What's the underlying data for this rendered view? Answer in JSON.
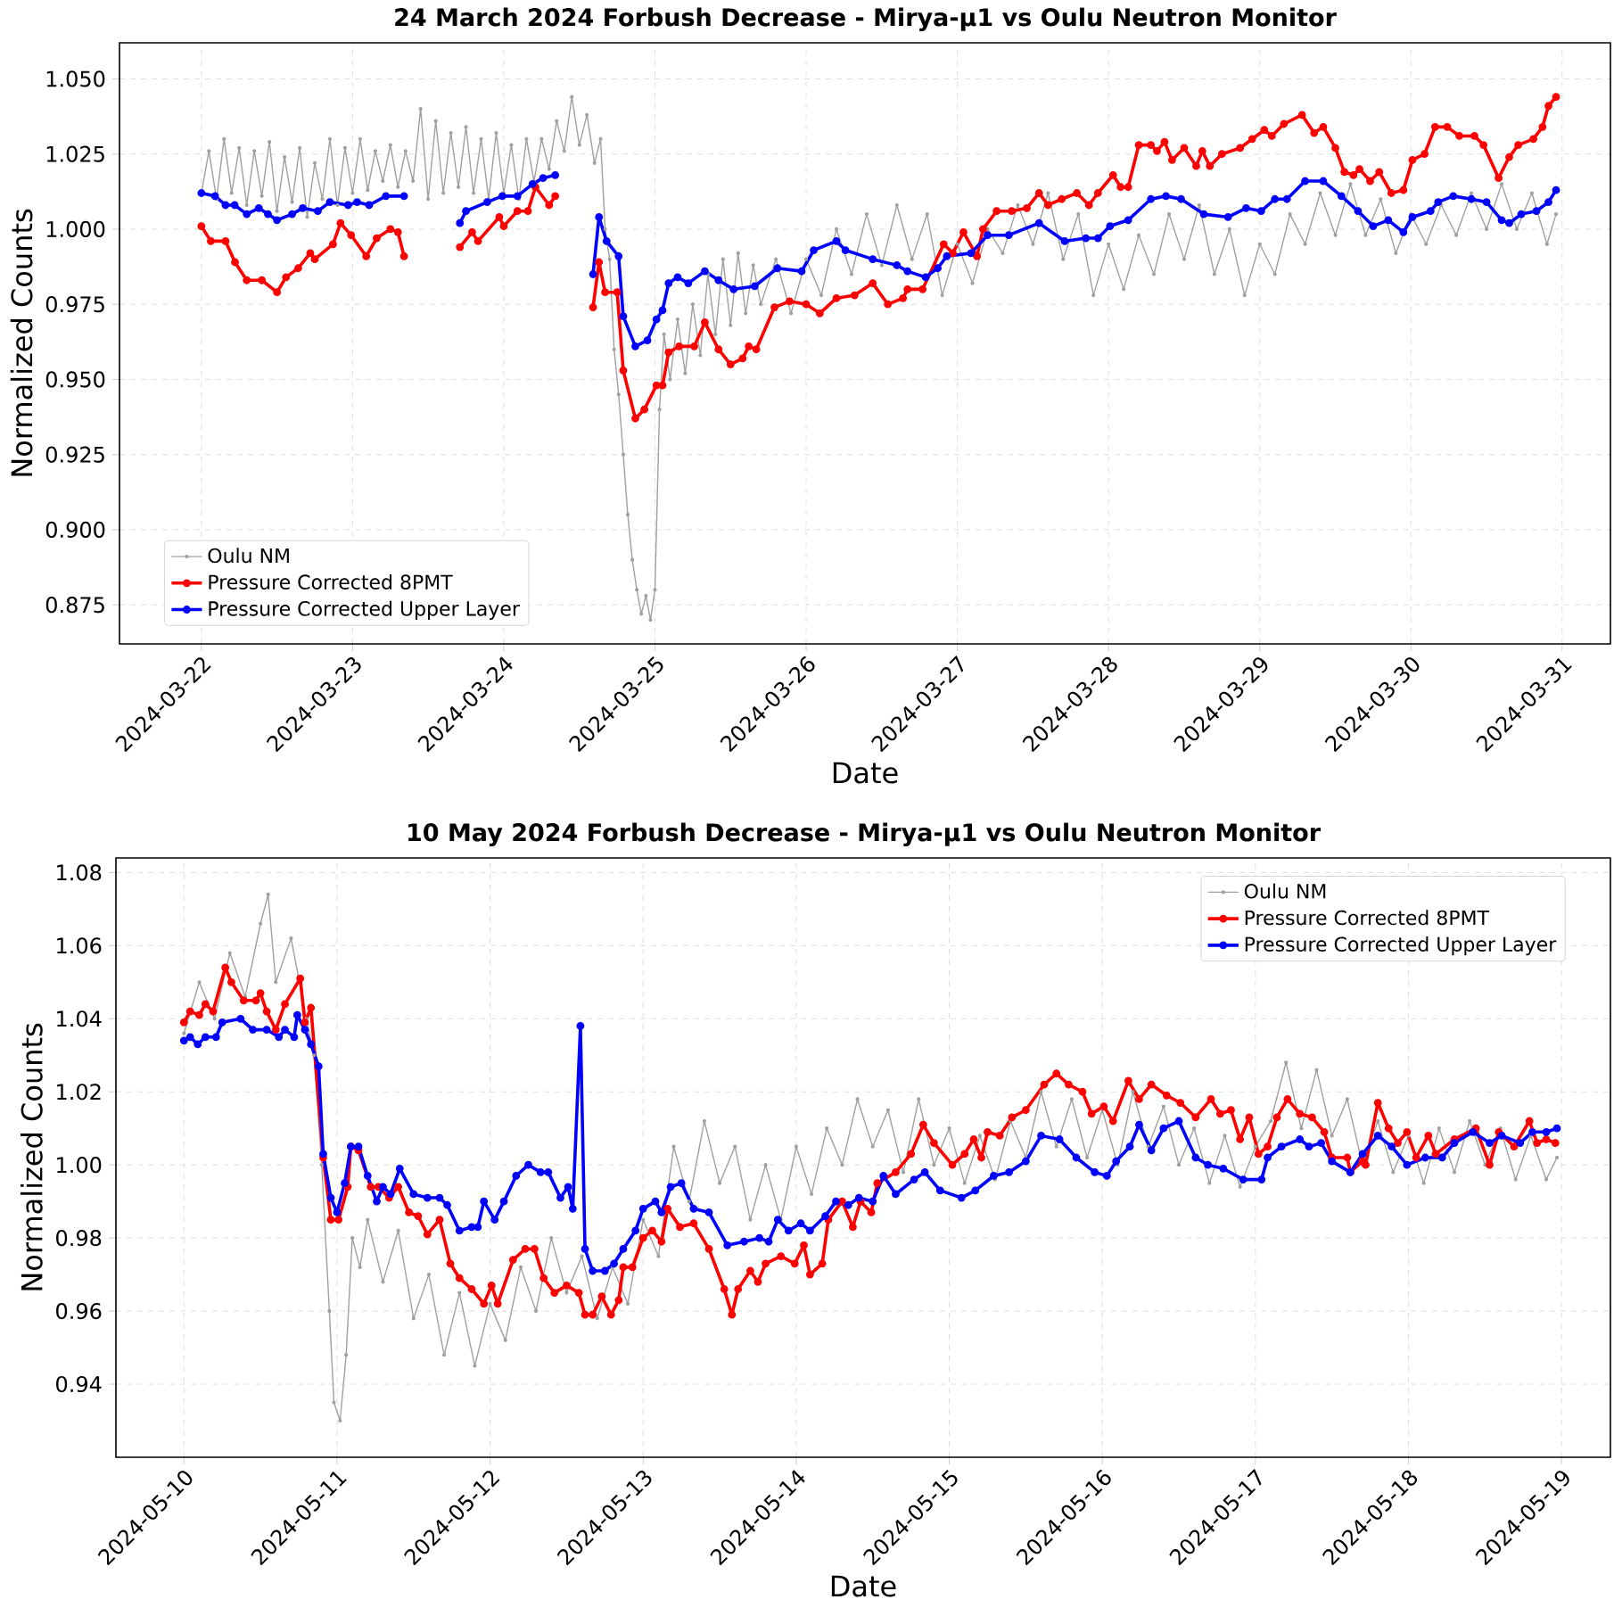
{
  "chart_data": [
    {
      "type": "line",
      "title": "24 March 2024 Forbush Decrease - Mirya-µ1 vs Oulu Neutron Monitor",
      "xlabel": "Date",
      "ylabel": "Normalized Counts",
      "xlim": [
        "2024-03-21T11:00",
        "2024-03-31T07:40"
      ],
      "ylim": [
        0.862,
        1.062
      ],
      "xticks": [
        "2024-03-22",
        "2024-03-23",
        "2024-03-24",
        "2024-03-25",
        "2024-03-26",
        "2024-03-27",
        "2024-03-28",
        "2024-03-29",
        "2024-03-30",
        "2024-03-31"
      ],
      "yticks": [
        {
          "value": 0.875,
          "label": "0.875"
        },
        {
          "value": 0.9,
          "label": "0.900"
        },
        {
          "value": 0.925,
          "label": "0.925"
        },
        {
          "value": 0.95,
          "label": "0.950"
        },
        {
          "value": 0.975,
          "label": "0.975"
        },
        {
          "value": 1.0,
          "label": "1.000"
        },
        {
          "value": 1.025,
          "label": "1.025"
        },
        {
          "value": 1.05,
          "label": "1.050"
        }
      ],
      "grid": true,
      "legend": "bottom left",
      "marker": "circle",
      "line_style": "solid",
      "series": [
        {
          "name": "Oulu NM",
          "color": "#a0a0a0",
          "x": [
            "2024-03-22T00:00",
            "2024-03-22T01:12",
            "2024-03-22T02:24",
            "2024-03-22T03:36",
            "2024-03-22T04:48",
            "2024-03-22T06:00",
            "2024-03-22T07:12",
            "2024-03-22T08:24",
            "2024-03-22T09:36",
            "2024-03-22T10:48",
            "2024-03-22T12:00",
            "2024-03-22T13:12",
            "2024-03-22T14:24",
            "2024-03-22T15:36",
            "2024-03-22T16:48",
            "2024-03-22T18:00",
            "2024-03-22T19:12",
            "2024-03-22T20:24",
            "2024-03-22T21:36",
            "2024-03-22T22:48",
            "2024-03-23T00:00",
            "2024-03-23T01:12",
            "2024-03-23T02:24",
            "2024-03-23T03:36",
            "2024-03-23T04:48",
            "2024-03-23T06:00",
            "2024-03-23T07:12",
            "2024-03-23T08:24",
            "2024-03-23T09:36",
            "2024-03-23T10:48",
            "2024-03-23T12:00",
            "2024-03-23T13:12",
            "2024-03-23T14:24",
            "2024-03-23T15:36",
            "2024-03-23T16:48",
            "2024-03-23T18:00",
            "2024-03-23T19:12",
            "2024-03-23T20:24",
            "2024-03-23T21:36",
            "2024-03-23T22:48",
            "2024-03-24T00:00",
            "2024-03-24T01:12",
            "2024-03-24T02:24",
            "2024-03-24T03:36",
            "2024-03-24T04:48",
            "2024-03-24T06:00",
            "2024-03-24T07:12",
            "2024-03-24T08:24",
            "2024-03-24T09:36",
            "2024-03-24T10:48",
            "2024-03-24T12:00",
            "2024-03-24T13:12",
            "2024-03-24T14:24",
            "2024-03-24T15:22",
            "2024-03-24T16:05",
            "2024-03-24T16:48",
            "2024-03-24T17:31",
            "2024-03-24T18:14",
            "2024-03-24T18:58",
            "2024-03-24T19:41",
            "2024-03-24T20:24",
            "2024-03-24T21:07",
            "2024-03-24T21:50",
            "2024-03-24T22:34",
            "2024-03-24T23:17",
            "2024-03-25T00:00",
            "2024-03-25T00:43",
            "2024-03-25T01:26",
            "2024-03-25T02:24",
            "2024-03-25T03:36",
            "2024-03-25T04:48",
            "2024-03-25T06:00",
            "2024-03-25T07:12",
            "2024-03-25T08:24",
            "2024-03-25T09:36",
            "2024-03-25T10:48",
            "2024-03-25T12:00",
            "2024-03-25T13:12",
            "2024-03-25T14:24",
            "2024-03-25T15:36",
            "2024-03-25T16:48",
            "2024-03-25T19:12",
            "2024-03-25T21:36",
            "2024-03-26T00:00",
            "2024-03-26T02:24",
            "2024-03-26T04:48",
            "2024-03-26T07:12",
            "2024-03-26T09:36",
            "2024-03-26T12:00",
            "2024-03-26T14:24",
            "2024-03-26T16:48",
            "2024-03-26T19:12",
            "2024-03-26T21:36",
            "2024-03-27T00:00",
            "2024-03-27T02:24",
            "2024-03-27T04:48",
            "2024-03-27T07:12",
            "2024-03-27T09:36",
            "2024-03-27T12:00",
            "2024-03-27T14:24",
            "2024-03-27T16:48",
            "2024-03-27T19:12",
            "2024-03-27T21:36",
            "2024-03-28T00:00",
            "2024-03-28T02:24",
            "2024-03-28T04:48",
            "2024-03-28T07:12",
            "2024-03-28T09:36",
            "2024-03-28T12:00",
            "2024-03-28T14:24",
            "2024-03-28T16:48",
            "2024-03-28T19:12",
            "2024-03-28T21:36",
            "2024-03-29T00:00",
            "2024-03-29T02:24",
            "2024-03-29T04:48",
            "2024-03-29T07:12",
            "2024-03-29T09:36",
            "2024-03-29T12:00",
            "2024-03-29T14:24",
            "2024-03-29T16:48",
            "2024-03-29T19:12",
            "2024-03-29T21:36",
            "2024-03-30T00:00",
            "2024-03-30T02:24",
            "2024-03-30T04:48",
            "2024-03-30T07:12",
            "2024-03-30T09:36",
            "2024-03-30T12:00",
            "2024-03-30T14:24",
            "2024-03-30T16:48",
            "2024-03-30T19:12",
            "2024-03-30T21:36",
            "2024-03-30T23:02"
          ],
          "values": [
            1.012,
            1.026,
            1.01,
            1.03,
            1.012,
            1.027,
            1.008,
            1.026,
            1.011,
            1.029,
            1.006,
            1.024,
            1.009,
            1.027,
            1.004,
            1.022,
            1.01,
            1.03,
            1.008,
            1.027,
            1.012,
            1.03,
            1.013,
            1.026,
            1.016,
            1.028,
            1.014,
            1.026,
            1.016,
            1.04,
            1.01,
            1.036,
            1.012,
            1.032,
            1.014,
            1.034,
            1.012,
            1.03,
            1.01,
            1.032,
            1.012,
            1.028,
            1.01,
            1.03,
            1.016,
            1.03,
            1.02,
            1.036,
            1.026,
            1.044,
            1.028,
            1.038,
            1.022,
            1.03,
            1.0,
            0.99,
            0.96,
            0.945,
            0.925,
            0.905,
            0.89,
            0.88,
            0.872,
            0.878,
            0.87,
            0.88,
            0.94,
            0.965,
            0.95,
            0.97,
            0.952,
            0.975,
            0.958,
            0.985,
            0.965,
            0.99,
            0.968,
            0.992,
            0.972,
            0.988,
            0.975,
            0.99,
            0.972,
            0.99,
            0.978,
            1.0,
            0.985,
            1.005,
            0.988,
            1.008,
            0.99,
            1.005,
            0.978,
            0.995,
            0.982,
            1.0,
            0.992,
            1.008,
            0.995,
            1.012,
            0.99,
            1.005,
            0.978,
            0.995,
            0.98,
            0.998,
            0.985,
            1.005,
            0.99,
            1.008,
            0.985,
            1.0,
            0.978,
            0.995,
            0.985,
            1.005,
            0.995,
            1.012,
            0.998,
            1.015,
            0.998,
            1.01,
            0.992,
            1.005,
            0.995,
            1.008,
            0.998,
            1.012,
            1.0,
            1.015,
            1.0,
            1.012,
            0.995,
            1.005
          ]
        },
        {
          "name": "Pressure Corrected 8PMT",
          "color": "#ff0000",
          "x": [
            "2024-03-22T00:00",
            "2024-03-22T01:30",
            "2024-03-22T03:50",
            "2024-03-22T05:20",
            "2024-03-22T07:12",
            "2024-03-22T09:36",
            "2024-03-22T12:00",
            "2024-03-22T13:26",
            "2024-03-22T15:22",
            "2024-03-22T17:17",
            "2024-03-22T18:00",
            "2024-03-22T20:53",
            "2024-03-22T22:05",
            "2024-03-22T23:46",
            "2024-03-23T02:10",
            "2024-03-23T03:50",
            "2024-03-23T06:00",
            "2024-03-23T07:12",
            "2024-03-23T08:10",
            "2024-03-23T14:00",
            "2024-03-23T17:02",
            "2024-03-23T18:58",
            "2024-03-23T19:55",
            "2024-03-23T23:17",
            "2024-03-24T00:00",
            "2024-03-24T02:10",
            "2024-03-24T03:50",
            "2024-03-24T05:02",
            "2024-03-24T07:12",
            "2024-03-24T08:10",
            "2024-03-24T11:00",
            "2024-03-24T14:10",
            "2024-03-24T15:07",
            "2024-03-24T16:05",
            "2024-03-24T18:00",
            "2024-03-24T18:58",
            "2024-03-24T20:53",
            "2024-03-24T22:19",
            "2024-03-25T00:14",
            "2024-03-25T01:12",
            "2024-03-25T02:10",
            "2024-03-25T03:50",
            "2024-03-25T06:14",
            "2024-03-25T07:55",
            "2024-03-25T10:05",
            "2024-03-25T12:00",
            "2024-03-25T13:55",
            "2024-03-25T14:53",
            "2024-03-25T16:05",
            "2024-03-25T18:58",
            "2024-03-25T21:22",
            "2024-03-26T00:00",
            "2024-03-26T02:10",
            "2024-03-26T04:48",
            "2024-03-26T07:41",
            "2024-03-26T10:34",
            "2024-03-26T12:58",
            "2024-03-26T15:22",
            "2024-03-26T16:05",
            "2024-03-26T18:29",
            "2024-03-26T21:50",
            "2024-03-26T23:17",
            "2024-03-27T00:58",
            "2024-03-27T03:07",
            "2024-03-27T04:05",
            "2024-03-27T06:14",
            "2024-03-27T08:38",
            "2024-03-27T11:02",
            "2024-03-27T12:58",
            "2024-03-27T14:24",
            "2024-03-27T16:34",
            "2024-03-27T18:58",
            "2024-03-27T20:53",
            "2024-03-27T22:19",
            "2024-03-28T00:43",
            "2024-03-28T01:55",
            "2024-03-28T03:07",
            "2024-03-28T04:48",
            "2024-03-28T06:43",
            "2024-03-28T07:41",
            "2024-03-28T08:53",
            "2024-03-28T10:05",
            "2024-03-28T12:00",
            "2024-03-28T13:55",
            "2024-03-28T14:53",
            "2024-03-28T16:05",
            "2024-03-28T18:00",
            "2024-03-28T20:53",
            "2024-03-28T22:48",
            "2024-03-29T00:43",
            "2024-03-29T01:55",
            "2024-03-29T03:50",
            "2024-03-29T06:43",
            "2024-03-29T08:38",
            "2024-03-29T10:05",
            "2024-03-29T12:00",
            "2024-03-29T13:26",
            "2024-03-29T14:53",
            "2024-03-29T15:50",
            "2024-03-29T17:31",
            "2024-03-29T18:58",
            "2024-03-29T20:53",
            "2024-03-29T22:48",
            "2024-03-30T00:14",
            "2024-03-30T02:10",
            "2024-03-30T03:50",
            "2024-03-30T05:46",
            "2024-03-30T07:41",
            "2024-03-30T10:05",
            "2024-03-30T11:31",
            "2024-03-30T13:55",
            "2024-03-30T15:36",
            "2024-03-30T17:02",
            "2024-03-30T19:26",
            "2024-03-30T20:53",
            "2024-03-30T21:50",
            "2024-03-30T23:02"
          ],
          "values": [
            1.001,
            0.996,
            0.996,
            0.989,
            0.983,
            0.983,
            0.979,
            0.984,
            0.987,
            0.992,
            0.99,
            0.995,
            1.002,
            0.998,
            0.991,
            0.997,
            1.0,
            0.999,
            0.991,
            null,
            0.994,
            0.999,
            0.996,
            1.004,
            1.001,
            1.006,
            1.006,
            1.014,
            1.008,
            1.011,
            null,
            0.974,
            0.989,
            0.979,
            0.979,
            0.953,
            0.937,
            0.94,
            0.948,
            0.948,
            0.959,
            0.961,
            0.961,
            0.969,
            0.96,
            0.955,
            0.957,
            0.961,
            0.96,
            0.974,
            0.976,
            0.975,
            0.972,
            0.977,
            0.978,
            0.982,
            0.975,
            0.977,
            0.98,
            0.98,
            0.995,
            0.992,
            0.999,
            0.991,
            1.0,
            1.006,
            1.006,
            1.007,
            1.012,
            1.008,
            1.01,
            1.012,
            1.008,
            1.012,
            1.018,
            1.014,
            1.014,
            1.028,
            1.028,
            1.026,
            1.029,
            1.023,
            1.027,
            1.021,
            1.026,
            1.021,
            1.025,
            1.027,
            1.03,
            1.033,
            1.031,
            1.035,
            1.038,
            1.032,
            1.034,
            1.027,
            1.019,
            1.018,
            1.02,
            1.016,
            1.019,
            1.012,
            1.013,
            1.023,
            1.025,
            1.034,
            1.034,
            1.031,
            1.031,
            1.028,
            1.017,
            1.024,
            1.028,
            1.03,
            1.034,
            1.041,
            1.044
          ]
        },
        {
          "name": "Pressure Corrected Upper Layer",
          "color": "#0000ff",
          "x": [
            "2024-03-22T00:00",
            "2024-03-22T02:10",
            "2024-03-22T03:50",
            "2024-03-22T05:17",
            "2024-03-22T07:12",
            "2024-03-22T09:07",
            "2024-03-22T10:34",
            "2024-03-22T12:00",
            "2024-03-22T14:24",
            "2024-03-22T16:05",
            "2024-03-22T18:29",
            "2024-03-22T20:24",
            "2024-03-22T23:17",
            "2024-03-23T00:43",
            "2024-03-23T02:38",
            "2024-03-23T05:17",
            "2024-03-23T08:10",
            "2024-03-23T14:00",
            "2024-03-23T17:02",
            "2024-03-23T18:00",
            "2024-03-23T21:22",
            "2024-03-23T23:46",
            "2024-03-24T02:10",
            "2024-03-24T04:34",
            "2024-03-24T06:14",
            "2024-03-24T08:10",
            "2024-03-24T11:00",
            "2024-03-24T14:10",
            "2024-03-24T15:07",
            "2024-03-24T16:19",
            "2024-03-24T18:14",
            "2024-03-24T18:58",
            "2024-03-24T20:53",
            "2024-03-24T22:48",
            "2024-03-25T00:14",
            "2024-03-25T01:12",
            "2024-03-25T02:10",
            "2024-03-25T03:36",
            "2024-03-25T05:17",
            "2024-03-25T07:55",
            "2024-03-25T10:05",
            "2024-03-25T12:29",
            "2024-03-25T15:50",
            "2024-03-25T19:26",
            "2024-03-25T23:17",
            "2024-03-26T01:12",
            "2024-03-26T04:48",
            "2024-03-26T06:14",
            "2024-03-26T10:34",
            "2024-03-26T14:24",
            "2024-03-26T16:05",
            "2024-03-26T18:58",
            "2024-03-26T20:53",
            "2024-03-26T22:19",
            "2024-03-27T02:10",
            "2024-03-27T04:48",
            "2024-03-27T08:10",
            "2024-03-27T12:58",
            "2024-03-27T17:02",
            "2024-03-27T20:24",
            "2024-03-27T22:19",
            "2024-03-28T00:14",
            "2024-03-28T03:07",
            "2024-03-28T06:43",
            "2024-03-28T09:07",
            "2024-03-28T11:31",
            "2024-03-28T15:07",
            "2024-03-28T18:58",
            "2024-03-28T21:50",
            "2024-03-29T00:14",
            "2024-03-29T02:24",
            "2024-03-29T04:19",
            "2024-03-29T07:12",
            "2024-03-29T10:05",
            "2024-03-29T12:58",
            "2024-03-29T15:36",
            "2024-03-29T18:00",
            "2024-03-29T20:24",
            "2024-03-29T22:48",
            "2024-03-30T00:14",
            "2024-03-30T03:07",
            "2024-03-30T04:19",
            "2024-03-30T06:43",
            "2024-03-30T09:36",
            "2024-03-30T12:00",
            "2024-03-30T14:24",
            "2024-03-30T15:36",
            "2024-03-30T17:31",
            "2024-03-30T19:55",
            "2024-03-30T21:50",
            "2024-03-30T23:02"
          ],
          "values": [
            1.012,
            1.011,
            1.008,
            1.008,
            1.005,
            1.007,
            1.005,
            1.003,
            1.005,
            1.007,
            1.006,
            1.009,
            1.008,
            1.009,
            1.008,
            1.011,
            1.011,
            null,
            1.002,
            1.006,
            1.009,
            1.011,
            1.011,
            1.015,
            1.017,
            1.018,
            null,
            0.985,
            1.004,
            0.996,
            0.991,
            0.971,
            0.961,
            0.963,
            0.97,
            0.973,
            0.982,
            0.984,
            0.982,
            0.986,
            0.983,
            0.98,
            0.981,
            0.987,
            0.986,
            0.993,
            0.996,
            0.993,
            0.99,
            0.988,
            0.986,
            0.984,
            0.987,
            0.991,
            0.992,
            0.998,
            0.998,
            1.002,
            0.996,
            0.997,
            0.997,
            1.001,
            1.003,
            1.01,
            1.011,
            1.01,
            1.005,
            1.004,
            1.007,
            1.006,
            1.01,
            1.01,
            1.016,
            1.016,
            1.011,
            1.006,
            1.001,
            1.003,
            0.999,
            1.004,
            1.006,
            1.009,
            1.011,
            1.01,
            1.009,
            1.003,
            1.002,
            1.005,
            1.006,
            1.009,
            1.013
          ]
        }
      ]
    },
    {
      "type": "line",
      "title": "10 May 2024 Forbush Decrease - Mirya-µ1 vs Oulu Neutron Monitor",
      "xlabel": "Date",
      "ylabel": "Normalized Counts",
      "xlim": [
        "2024-05-09T13:20",
        "2024-05-19T07:40"
      ],
      "ylim": [
        0.92,
        1.084
      ],
      "xticks": [
        "2024-05-10",
        "2024-05-11",
        "2024-05-12",
        "2024-05-13",
        "2024-05-14",
        "2024-05-15",
        "2024-05-16",
        "2024-05-17",
        "2024-05-18",
        "2024-05-19"
      ],
      "yticks": [
        {
          "value": 0.94,
          "label": "0.94"
        },
        {
          "value": 0.96,
          "label": "0.96"
        },
        {
          "value": 0.98,
          "label": "0.98"
        },
        {
          "value": 1.0,
          "label": "1.00"
        },
        {
          "value": 1.02,
          "label": "1.02"
        },
        {
          "value": 1.04,
          "label": "1.04"
        },
        {
          "value": 1.06,
          "label": "1.06"
        },
        {
          "value": 1.08,
          "label": "1.08"
        }
      ],
      "grid": true,
      "legend": "top right",
      "marker": "circle",
      "line_style": "solid",
      "series": [
        {
          "name": "Oulu NM",
          "color": "#a0a0a0",
          "x": [
            "2024-05-10T00:00",
            "2024-05-10T02:24",
            "2024-05-10T04:48",
            "2024-05-10T07:12",
            "2024-05-10T09:36",
            "2024-05-10T12:00",
            "2024-05-10T13:12",
            "2024-05-10T14:24",
            "2024-05-10T16:48",
            "2024-05-10T19:12",
            "2024-05-10T20:24",
            "2024-05-10T21:36",
            "2024-05-10T22:48",
            "2024-05-10T23:31",
            "2024-05-11T00:29",
            "2024-05-11T01:26",
            "2024-05-11T02:24",
            "2024-05-11T03:36",
            "2024-05-11T04:48",
            "2024-05-11T07:12",
            "2024-05-11T09:36",
            "2024-05-11T12:00",
            "2024-05-11T14:24",
            "2024-05-11T16:48",
            "2024-05-11T19:12",
            "2024-05-11T21:36",
            "2024-05-12T00:00",
            "2024-05-12T02:24",
            "2024-05-12T04:48",
            "2024-05-12T07:12",
            "2024-05-12T09:36",
            "2024-05-12T12:00",
            "2024-05-12T14:24",
            "2024-05-12T16:48",
            "2024-05-12T19:12",
            "2024-05-12T21:36",
            "2024-05-13T00:00",
            "2024-05-13T02:24",
            "2024-05-13T04:48",
            "2024-05-13T07:12",
            "2024-05-13T09:36",
            "2024-05-13T12:00",
            "2024-05-13T14:24",
            "2024-05-13T16:48",
            "2024-05-13T19:12",
            "2024-05-13T21:36",
            "2024-05-14T00:00",
            "2024-05-14T02:24",
            "2024-05-14T04:48",
            "2024-05-14T07:12",
            "2024-05-14T09:36",
            "2024-05-14T12:00",
            "2024-05-14T14:24",
            "2024-05-14T16:48",
            "2024-05-14T19:12",
            "2024-05-14T21:36",
            "2024-05-15T00:00",
            "2024-05-15T02:24",
            "2024-05-15T04:48",
            "2024-05-15T07:12",
            "2024-05-15T09:36",
            "2024-05-15T12:00",
            "2024-05-15T14:24",
            "2024-05-15T16:48",
            "2024-05-15T19:12",
            "2024-05-15T21:36",
            "2024-05-16T00:00",
            "2024-05-16T02:24",
            "2024-05-16T04:48",
            "2024-05-16T07:12",
            "2024-05-16T09:36",
            "2024-05-16T12:00",
            "2024-05-16T14:24",
            "2024-05-16T16:48",
            "2024-05-16T19:12",
            "2024-05-16T21:36",
            "2024-05-17T00:00",
            "2024-05-17T02:24",
            "2024-05-17T04:48",
            "2024-05-17T07:12",
            "2024-05-17T09:36",
            "2024-05-17T12:00",
            "2024-05-17T14:24",
            "2024-05-17T16:48",
            "2024-05-17T19:12",
            "2024-05-17T21:36",
            "2024-05-18T00:00",
            "2024-05-18T02:24",
            "2024-05-18T04:48",
            "2024-05-18T07:12",
            "2024-05-18T09:36",
            "2024-05-18T12:00",
            "2024-05-18T14:24",
            "2024-05-18T16:48",
            "2024-05-18T19:12",
            "2024-05-18T21:36",
            "2024-05-18T23:17"
          ],
          "values": [
            1.036,
            1.05,
            1.04,
            1.058,
            1.046,
            1.066,
            1.074,
            1.05,
            1.062,
            1.04,
            1.03,
            1.0,
            0.96,
            0.935,
            0.93,
            0.948,
            0.98,
            0.972,
            0.985,
            0.968,
            0.982,
            0.958,
            0.97,
            0.948,
            0.965,
            0.945,
            0.962,
            0.952,
            0.972,
            0.96,
            0.98,
            0.965,
            0.975,
            0.958,
            0.972,
            0.962,
            0.985,
            0.975,
            1.005,
            0.99,
            1.012,
            0.995,
            1.005,
            0.985,
            1.0,
            0.985,
            1.005,
            0.992,
            1.01,
            1.0,
            1.018,
            1.005,
            1.015,
            0.998,
            1.018,
            1.0,
            1.01,
            0.995,
            1.008,
            0.996,
            1.012,
            1.002,
            1.02,
            1.005,
            1.018,
            1.002,
            1.015,
            1.0,
            1.02,
            1.005,
            1.016,
            1.0,
            1.01,
            0.995,
            1.008,
            0.994,
            1.005,
            1.012,
            1.028,
            1.01,
            1.026,
            1.008,
            1.018,
            1.0,
            1.012,
            0.998,
            1.008,
            0.995,
            1.01,
            0.998,
            1.012,
            1.0,
            1.01,
            0.996,
            1.008,
            0.996,
            1.002
          ]
        },
        {
          "name": "Pressure Corrected 8PMT",
          "color": "#ff0000",
          "x": [
            "2024-05-10T00:00",
            "2024-05-10T00:58",
            "2024-05-10T02:24",
            "2024-05-10T03:22",
            "2024-05-10T04:34",
            "2024-05-10T06:29",
            "2024-05-10T07:26",
            "2024-05-10T09:22",
            "2024-05-10T11:17",
            "2024-05-10T12:00",
            "2024-05-10T12:58",
            "2024-05-10T14:24",
            "2024-05-10T15:50",
            "2024-05-10T18:14",
            "2024-05-10T18:58",
            "2024-05-10T19:55",
            "2024-05-10T21:50",
            "2024-05-10T23:02",
            "2024-05-11T00:14",
            "2024-05-11T01:41",
            "2024-05-11T02:10",
            "2024-05-11T03:22",
            "2024-05-11T05:17",
            "2024-05-11T06:29",
            "2024-05-11T08:10",
            "2024-05-11T09:36",
            "2024-05-11T11:17",
            "2024-05-11T12:43",
            "2024-05-11T14:10",
            "2024-05-11T16:05",
            "2024-05-11T17:46",
            "2024-05-11T19:12",
            "2024-05-11T21:07",
            "2024-05-11T23:02",
            "2024-05-12T00:14",
            "2024-05-12T01:12",
            "2024-05-12T03:36",
            "2024-05-12T05:31",
            "2024-05-12T06:58",
            "2024-05-12T08:24",
            "2024-05-12T10:05",
            "2024-05-12T12:00",
            "2024-05-12T13:55",
            "2024-05-12T14:53",
            "2024-05-12T16:05",
            "2024-05-12T17:31",
            "2024-05-12T18:58",
            "2024-05-12T20:10",
            "2024-05-12T20:53",
            "2024-05-12T22:19",
            "2024-05-13T00:00",
            "2024-05-13T01:26",
            "2024-05-13T02:53",
            "2024-05-13T03:50",
            "2024-05-13T05:46",
            "2024-05-13T07:55",
            "2024-05-13T10:19",
            "2024-05-13T12:43",
            "2024-05-13T13:55",
            "2024-05-13T14:53",
            "2024-05-13T16:48",
            "2024-05-13T18:00",
            "2024-05-13T19:12",
            "2024-05-13T21:36",
            "2024-05-13T23:46",
            "2024-05-14T01:12",
            "2024-05-14T02:10",
            "2024-05-14T04:05",
            "2024-05-14T05:02",
            "2024-05-14T07:12",
            "2024-05-14T08:53",
            "2024-05-14T10:05",
            "2024-05-14T11:46",
            "2024-05-14T12:43",
            "2024-05-14T15:36",
            "2024-05-14T18:00",
            "2024-05-14T19:55",
            "2024-05-14T21:36",
            "2024-05-15T00:29",
            "2024-05-15T02:24",
            "2024-05-15T03:50",
            "2024-05-15T05:02",
            "2024-05-15T06:00",
            "2024-05-15T07:55",
            "2024-05-15T09:50",
            "2024-05-15T12:00",
            "2024-05-15T14:53",
            "2024-05-15T16:48",
            "2024-05-15T18:43",
            "2024-05-15T20:53",
            "2024-05-15T22:19",
            "2024-05-16T00:14",
            "2024-05-16T01:41",
            "2024-05-16T04:05",
            "2024-05-16T05:46",
            "2024-05-16T07:41",
            "2024-05-16T10:05",
            "2024-05-16T12:14",
            "2024-05-16T14:38",
            "2024-05-16T17:02",
            "2024-05-16T18:29",
            "2024-05-16T20:10",
            "2024-05-16T21:36",
            "2024-05-16T23:02",
            "2024-05-17T00:29",
            "2024-05-17T01:55",
            "2024-05-17T03:22",
            "2024-05-17T05:02",
            "2024-05-17T06:58",
            "2024-05-17T08:53",
            "2024-05-17T10:48",
            "2024-05-17T12:00",
            "2024-05-17T14:24",
            "2024-05-17T14:53",
            "2024-05-17T16:48",
            "2024-05-17T17:17",
            "2024-05-17T19:12",
            "2024-05-17T20:53",
            "2024-05-17T22:19",
            "2024-05-17T23:46",
            "2024-05-18T01:12",
            "2024-05-18T03:07",
            "2024-05-18T04:19",
            "2024-05-18T07:12",
            "2024-05-18T10:34",
            "2024-05-18T12:43",
            "2024-05-18T14:10",
            "2024-05-18T16:34",
            "2024-05-18T18:58",
            "2024-05-18T20:10",
            "2024-05-18T21:36",
            "2024-05-18T23:02"
          ],
          "values": [
            1.039,
            1.042,
            1.041,
            1.044,
            1.042,
            1.054,
            1.05,
            1.045,
            1.045,
            1.047,
            1.042,
            1.037,
            1.044,
            1.051,
            1.039,
            1.043,
            1.002,
            0.985,
            0.985,
            0.994,
            1.005,
            1.004,
            0.994,
            0.994,
            0.991,
            0.994,
            0.987,
            0.986,
            0.981,
            0.985,
            0.973,
            0.969,
            0.966,
            0.962,
            0.967,
            0.962,
            0.974,
            0.977,
            0.977,
            0.969,
            0.965,
            0.967,
            0.965,
            0.959,
            0.959,
            0.964,
            0.959,
            0.963,
            0.972,
            0.972,
            0.98,
            0.982,
            0.979,
            0.988,
            0.983,
            0.984,
            0.977,
            0.966,
            0.959,
            0.966,
            0.971,
            0.968,
            0.973,
            0.975,
            0.973,
            0.978,
            0.97,
            0.973,
            0.985,
            0.99,
            0.983,
            0.99,
            0.987,
            0.995,
            0.998,
            1.003,
            1.011,
            1.006,
            1.0,
            1.003,
            1.007,
            1.002,
            1.009,
            1.008,
            1.013,
            1.015,
            1.022,
            1.025,
            1.022,
            1.02,
            1.014,
            1.016,
            1.012,
            1.023,
            1.018,
            1.022,
            1.019,
            1.017,
            1.013,
            1.018,
            1.014,
            1.015,
            1.007,
            1.013,
            1.003,
            1.005,
            1.013,
            1.018,
            1.014,
            1.013,
            1.009,
            1.002,
            1.002,
            0.998,
            1.001,
            1.0,
            1.017,
            1.01,
            1.006,
            1.009,
            1.002,
            1.008,
            1.003,
            1.007,
            1.01,
            1.0,
            1.009,
            1.005,
            1.012,
            1.006,
            1.007,
            1.006
          ]
        },
        {
          "name": "Pressure Corrected Upper Layer",
          "color": "#0000ff",
          "x": [
            "2024-05-10T00:00",
            "2024-05-10T00:58",
            "2024-05-10T02:10",
            "2024-05-10T03:22",
            "2024-05-10T05:02",
            "2024-05-10T06:00",
            "2024-05-10T08:53",
            "2024-05-10T10:48",
            "2024-05-10T12:58",
            "2024-05-10T14:53",
            "2024-05-10T15:50",
            "2024-05-10T17:17",
            "2024-05-10T17:46",
            "2024-05-10T18:58",
            "2024-05-10T19:55",
            "2024-05-10T21:07",
            "2024-05-10T21:50",
            "2024-05-10T23:02",
            "2024-05-11T00:00",
            "2024-05-11T01:12",
            "2024-05-11T02:10",
            "2024-05-11T03:22",
            "2024-05-11T04:48",
            "2024-05-11T06:14",
            "2024-05-11T07:12",
            "2024-05-11T08:24",
            "2024-05-11T09:50",
            "2024-05-11T12:00",
            "2024-05-11T14:10",
            "2024-05-11T16:05",
            "2024-05-11T17:17",
            "2024-05-11T19:12",
            "2024-05-11T21:07",
            "2024-05-11T22:05",
            "2024-05-11T23:02",
            "2024-05-12T00:43",
            "2024-05-12T02:10",
            "2024-05-12T04:05",
            "2024-05-12T06:00",
            "2024-05-12T07:55",
            "2024-05-12T09:07",
            "2024-05-12T11:02",
            "2024-05-12T12:14",
            "2024-05-12T12:58",
            "2024-05-12T14:10",
            "2024-05-12T14:53",
            "2024-05-12T16:05",
            "2024-05-12T18:00",
            "2024-05-12T19:26",
            "2024-05-12T20:53",
            "2024-05-12T22:48",
            "2024-05-13T00:00",
            "2024-05-13T01:55",
            "2024-05-13T02:53",
            "2024-05-13T04:19",
            "2024-05-13T06:00",
            "2024-05-13T07:55",
            "2024-05-13T10:19",
            "2024-05-13T13:12",
            "2024-05-13T15:50",
            "2024-05-13T18:14",
            "2024-05-13T19:41",
            "2024-05-13T21:07",
            "2024-05-13T22:48",
            "2024-05-14T00:43",
            "2024-05-14T02:10",
            "2024-05-14T04:34",
            "2024-05-14T06:14",
            "2024-05-14T08:10",
            "2024-05-14T09:50",
            "2024-05-14T12:00",
            "2024-05-14T13:41",
            "2024-05-14T15:36",
            "2024-05-14T18:29",
            "2024-05-14T20:10",
            "2024-05-14T22:34",
            "2024-05-15T01:55",
            "2024-05-15T04:05",
            "2024-05-15T06:58",
            "2024-05-15T09:22",
            "2024-05-15T12:00",
            "2024-05-15T14:24",
            "2024-05-15T17:17",
            "2024-05-15T19:55",
            "2024-05-15T22:48",
            "2024-05-16T00:43",
            "2024-05-16T02:10",
            "2024-05-16T04:19",
            "2024-05-16T05:46",
            "2024-05-16T07:41",
            "2024-05-16T09:36",
            "2024-05-16T12:00",
            "2024-05-16T14:38",
            "2024-05-16T16:34",
            "2024-05-16T18:58",
            "2024-05-16T22:05",
            "2024-05-17T00:58",
            "2024-05-17T01:55",
            "2024-05-17T04:05",
            "2024-05-17T06:58",
            "2024-05-17T08:24",
            "2024-05-17T10:19",
            "2024-05-17T12:00",
            "2024-05-17T14:53",
            "2024-05-17T16:48",
            "2024-05-17T19:12",
            "2024-05-17T21:22",
            "2024-05-17T23:46",
            "2024-05-18T02:38",
            "2024-05-18T05:17",
            "2024-05-18T07:12",
            "2024-05-18T10:05",
            "2024-05-18T12:43",
            "2024-05-18T14:38",
            "2024-05-18T17:31",
            "2024-05-18T19:26",
            "2024-05-18T21:36",
            "2024-05-18T23:17"
          ],
          "values": [
            1.034,
            1.035,
            1.033,
            1.035,
            1.035,
            1.039,
            1.04,
            1.037,
            1.037,
            1.035,
            1.037,
            1.035,
            1.041,
            1.037,
            1.033,
            1.027,
            1.003,
            0.991,
            0.987,
            0.995,
            1.005,
            1.005,
            0.997,
            0.99,
            0.994,
            0.992,
            0.999,
            0.992,
            0.991,
            0.991,
            0.989,
            0.982,
            0.983,
            0.983,
            0.99,
            0.985,
            0.99,
            0.997,
            1.0,
            0.998,
            0.998,
            0.991,
            0.994,
            0.988,
            1.038,
            0.977,
            0.971,
            0.971,
            0.973,
            0.977,
            0.982,
            0.988,
            0.99,
            0.987,
            0.994,
            0.995,
            0.988,
            0.987,
            0.978,
            0.979,
            0.98,
            0.979,
            0.985,
            0.982,
            0.984,
            0.982,
            0.986,
            0.99,
            0.989,
            0.991,
            0.99,
            0.997,
            0.992,
            0.996,
            0.998,
            0.993,
            0.991,
            0.993,
            0.997,
            0.998,
            1.001,
            1.008,
            1.007,
            1.002,
            0.998,
            0.997,
            1.001,
            1.005,
            1.011,
            1.004,
            1.01,
            1.012,
            1.002,
            1.0,
            0.999,
            0.996,
            0.996,
            1.002,
            1.005,
            1.007,
            1.005,
            1.006,
            1.001,
            0.998,
            1.003,
            1.008,
            1.005,
            1.0,
            1.002,
            1.002,
            1.006,
            1.009,
            1.006,
            1.008,
            1.006,
            1.009,
            1.009,
            1.01
          ]
        }
      ]
    }
  ]
}
